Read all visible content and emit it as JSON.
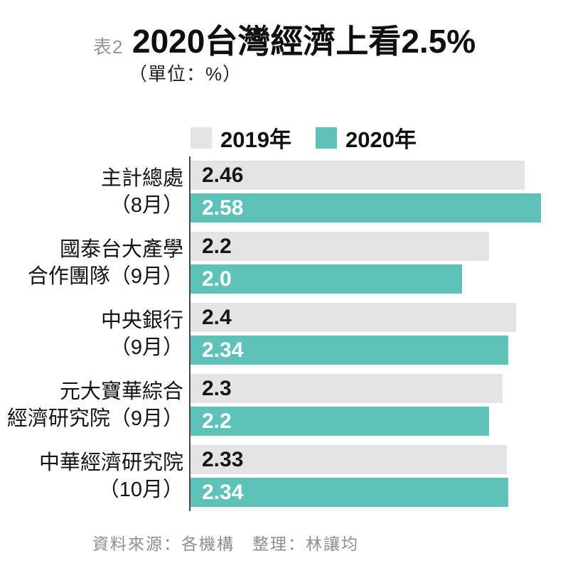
{
  "header": {
    "table_label": "表2",
    "title": "2020台灣經濟上看2.5%",
    "subtitle": "（單位：%）"
  },
  "legend": {
    "items": [
      {
        "label": "2019年",
        "color": "#e4e4e6"
      },
      {
        "label": "2020年",
        "color": "#5ec2b9"
      }
    ]
  },
  "footer": {
    "source": "資料來源：各機構　整理：林讓均"
  },
  "colors": {
    "bar_2019": "#e4e4e6",
    "bar_2020": "#5ec2b9",
    "axis_line": "#4a4a4e",
    "title_text": "#0f0f0f",
    "muted_text": "#96969a",
    "value_on_2019": "#161616",
    "value_on_2020": "#ffffff"
  },
  "chart_data": {
    "type": "bar",
    "orientation": "horizontal",
    "title": "2020台灣經濟上看2.5%",
    "unit": "%",
    "xlim": [
      0,
      2.58
    ],
    "grid": false,
    "legend_position": "top",
    "categories": [
      [
        "主計總處",
        "（8月）"
      ],
      [
        "國泰台大產學",
        "合作團隊（9月）"
      ],
      [
        "中央銀行",
        "（9月）"
      ],
      [
        "元大寶華綜合",
        "經濟研究院（9月）"
      ],
      [
        "中華經濟研究院",
        "（10月）"
      ]
    ],
    "series": [
      {
        "name": "2019年",
        "color": "#e4e4e6",
        "values": [
          2.46,
          2.2,
          2.4,
          2.3,
          2.33
        ],
        "value_labels": [
          "2.46",
          "2.2",
          "2.4",
          "2.3",
          "2.33"
        ]
      },
      {
        "name": "2020年",
        "color": "#5ec2b9",
        "values": [
          2.58,
          2.0,
          2.34,
          2.2,
          2.34
        ],
        "value_labels": [
          "2.58",
          "2.0",
          "2.34",
          "2.2",
          "2.34"
        ]
      }
    ]
  }
}
